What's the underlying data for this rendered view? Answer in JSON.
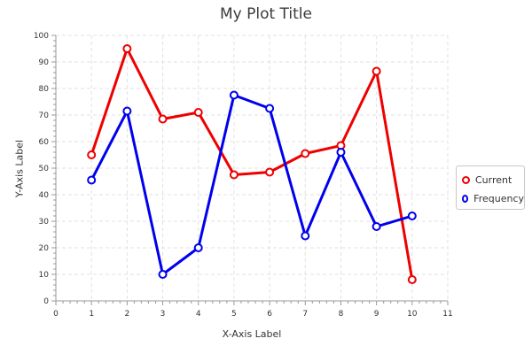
{
  "chart_data": {
    "type": "line",
    "title": "My Plot Title",
    "xlabel": "X-Axis Label",
    "ylabel": "Y-Axis Label",
    "xlim": [
      0,
      11
    ],
    "ylim": [
      0,
      100
    ],
    "x_ticks": [
      0,
      1,
      2,
      3,
      4,
      5,
      6,
      7,
      8,
      9,
      10,
      11
    ],
    "y_ticks": [
      0,
      10,
      20,
      30,
      40,
      50,
      60,
      70,
      80,
      90,
      100
    ],
    "grid": true,
    "legend_position": "right",
    "series": [
      {
        "name": "Current",
        "color": "#ee0000",
        "x": [
          1,
          2,
          3,
          4,
          5,
          6,
          7,
          8,
          9,
          10
        ],
        "y": [
          55,
          95,
          68.5,
          71,
          47.5,
          48.5,
          55.5,
          58.5,
          86.5,
          8
        ]
      },
      {
        "name": "Frequency",
        "color": "#0000ee",
        "x": [
          1,
          2,
          3,
          4,
          5,
          6,
          7,
          8,
          9,
          10
        ],
        "y": [
          45.5,
          71.5,
          10,
          20,
          77.5,
          72.5,
          24.5,
          56,
          28,
          32
        ]
      }
    ]
  }
}
